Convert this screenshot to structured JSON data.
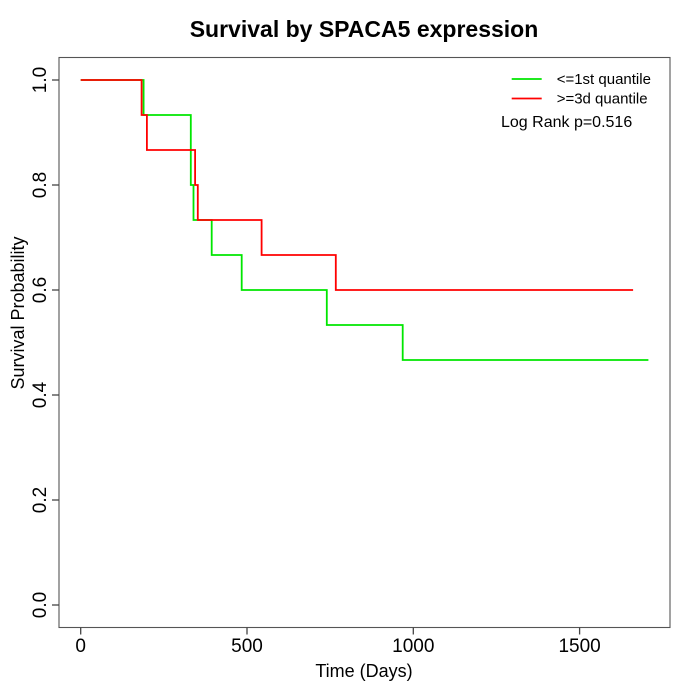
{
  "figure": {
    "background": "#FFFFFF"
  },
  "chart_data": {
    "type": "line",
    "subtype": "kaplan-meier-step-survival",
    "title": "Survival by SPACA5 expression",
    "xlabel": "Time (Days)",
    "ylabel": "Survival Probability",
    "xlim": [
      0,
      1707
    ],
    "ylim": [
      0,
      1
    ],
    "x_ticks": [
      0,
      500,
      1000,
      1500
    ],
    "x_tick_labels": [
      "0",
      "500",
      "1000",
      "1500"
    ],
    "y_ticks": [
      0,
      0.2,
      0.4,
      0.6,
      0.8,
      1
    ],
    "y_tick_labels": [
      "0.0",
      "0.2",
      "0.4",
      "0.6",
      "0.8",
      "1.0"
    ],
    "grid": false,
    "legend_position": "top-right",
    "annotation": "Log Rank p=0.516",
    "series": [
      {
        "name": "<=1st quantile",
        "color": "#00E600",
        "points": [
          [
            0,
            1
          ],
          [
            189,
            1
          ],
          [
            189,
            0.9333
          ],
          [
            331,
            0.9333
          ],
          [
            331,
            0.8
          ],
          [
            339,
            0.8
          ],
          [
            339,
            0.7333
          ],
          [
            394,
            0.7333
          ],
          [
            394,
            0.6667
          ],
          [
            484,
            0.6667
          ],
          [
            484,
            0.6
          ],
          [
            740,
            0.6
          ],
          [
            740,
            0.5333
          ],
          [
            968,
            0.5333
          ],
          [
            968,
            0.4667
          ],
          [
            1707,
            0.4667
          ]
        ]
      },
      {
        "name": ">=3d quantile",
        "color": "#FF0000",
        "points": [
          [
            0,
            1
          ],
          [
            183,
            1
          ],
          [
            183,
            0.9333
          ],
          [
            199,
            0.9333
          ],
          [
            199,
            0.8667
          ],
          [
            344,
            0.8667
          ],
          [
            344,
            0.8
          ],
          [
            352,
            0.8
          ],
          [
            352,
            0.7333
          ],
          [
            544,
            0.7333
          ],
          [
            544,
            0.6667
          ],
          [
            767,
            0.6667
          ],
          [
            767,
            0.6
          ],
          [
            1661,
            0.6
          ]
        ]
      }
    ]
  }
}
